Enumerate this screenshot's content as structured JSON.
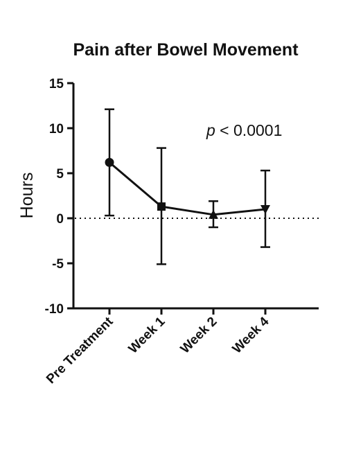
{
  "chart_data": {
    "type": "line",
    "title": "Pain after Bowel Movement",
    "xlabel": "",
    "ylabel": "Hours",
    "categories": [
      "Pre Treatment",
      "Week 1",
      "Week 2",
      "Week 4"
    ],
    "series": [
      {
        "values": [
          6.2,
          1.3,
          0.4,
          1.0
        ],
        "error_low": [
          0.3,
          -5.1,
          -1.0,
          -3.2
        ],
        "error_high": [
          12.1,
          7.8,
          1.9,
          5.3
        ],
        "markers": [
          "circle",
          "square",
          "triangle-up",
          "triangle-down"
        ]
      }
    ],
    "ylim": [
      -10,
      15
    ],
    "yticks": [
      "15",
      "10",
      "5",
      "0",
      "-5",
      "-10"
    ],
    "ytick_values": [
      15,
      10,
      5,
      0,
      -5,
      -10
    ],
    "reference_line": 0,
    "annotation": {
      "italic": "p",
      "text": " < 0.0001"
    },
    "grid": false,
    "legend": "none"
  }
}
